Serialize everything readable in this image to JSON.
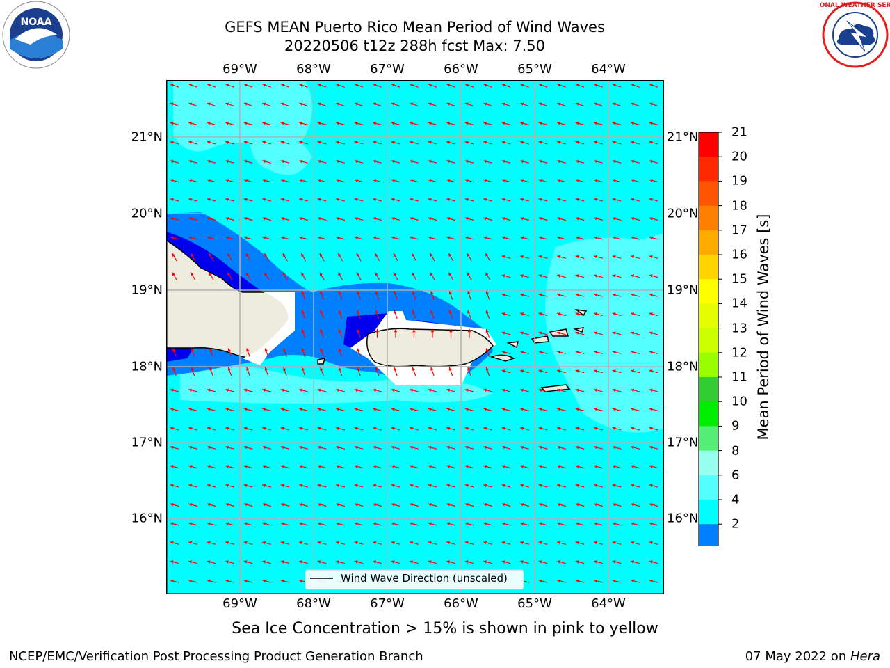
{
  "header": {
    "title_line1": "GEFS MEAN Puerto Rico Mean Period of Wind Waves",
    "title_line2": "20220506 t12z 288h fcst   Max: 7.50"
  },
  "logos": {
    "left": "noaa-logo",
    "right": "national-weather-service-logo",
    "left_text": "NOAA",
    "right_text": "NATIONAL WEATHER SERVICE"
  },
  "map": {
    "lon_labels": [
      "69°W",
      "68°W",
      "67°W",
      "66°W",
      "65°W",
      "64°W"
    ],
    "lat_labels": [
      "21°N",
      "20°N",
      "19°N",
      "18°N",
      "17°N",
      "16°N"
    ],
    "legend_label": "Wind Wave Direction (unscaled)",
    "arrow_color": "#ff0000",
    "colors": {
      "land": "#eeecdf",
      "ocean_6_8": "#00ffff",
      "ocean_4_6": "#33ffff",
      "shallow_2_4": "#0080ff",
      "below_2": "#0000ff"
    }
  },
  "colorbar": {
    "title": "Mean Period of Wind Waves [s]",
    "ticks": [
      "21",
      "20",
      "19",
      "18",
      "17",
      "16",
      "15",
      "14",
      "13",
      "12",
      "11",
      "10",
      "9",
      "8",
      "6",
      "4",
      "2"
    ],
    "colors": [
      "#ff0000",
      "#ff2a00",
      "#ff5500",
      "#ff8000",
      "#ffaa00",
      "#ffd400",
      "#ffff00",
      "#e5ff00",
      "#ccff00",
      "#99ff00",
      "#33cc33",
      "#00ee00",
      "#55ee77",
      "#99ffee",
      "#55ffff",
      "#00ffff",
      "#0080ff",
      "#0000ee"
    ]
  },
  "subtitle": "Sea Ice Concentration > 15% is shown in pink to yellow",
  "footer": {
    "left": "NCEP/EMC/Verification Post Processing Product Generation Branch",
    "right_date": "07 May 2022 on ",
    "right_host": "Hera"
  }
}
